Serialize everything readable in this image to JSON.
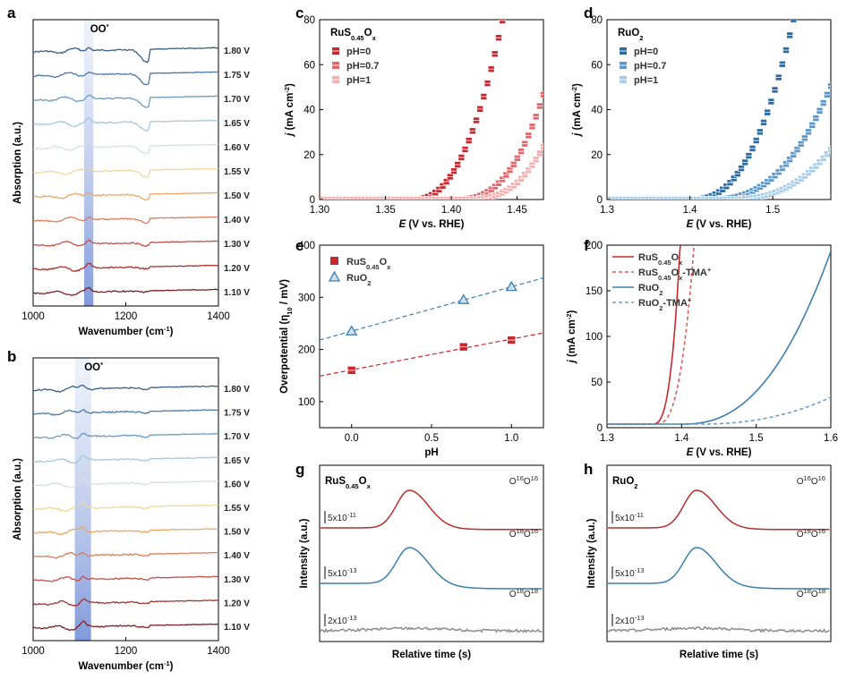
{
  "chart_data": [
    {
      "panel": "a",
      "type": "line",
      "xlabel": "Wavenumber (cm",
      "xlabel_sup": "-1",
      "xlabel_end": ")",
      "ylabel": "Absorption (a.u.)",
      "xlim": [
        1000,
        1400
      ],
      "xticks": [
        "1000",
        "1200",
        "1400"
      ],
      "annotation": "OO",
      "annotation_sup": "*",
      "highlight_band": [
        1110,
        1130
      ],
      "series": [
        {
          "name": "1.80 V",
          "color": "#3a5f86"
        },
        {
          "name": "1.75 V",
          "color": "#4d7aa3"
        },
        {
          "name": "1.70 V",
          "color": "#6f9bc0"
        },
        {
          "name": "1.65 V",
          "color": "#a7c7dc"
        },
        {
          "name": "1.60 V",
          "color": "#d8dfe3"
        },
        {
          "name": "1.55 V",
          "color": "#f1d79a"
        },
        {
          "name": "1.50 V",
          "color": "#eaa766"
        },
        {
          "name": "1.40 V",
          "color": "#d77f5e"
        },
        {
          "name": "1.30 V",
          "color": "#c2504a"
        },
        {
          "name": "1.20 V",
          "color": "#a8312f"
        },
        {
          "name": "1.10 V",
          "color": "#7d1f24"
        }
      ]
    },
    {
      "panel": "b",
      "type": "line",
      "xlabel": "Wavenumber (cm",
      "xlabel_sup": "-1",
      "xlabel_end": ")",
      "ylabel": "Absorption (a.u.)",
      "xlim": [
        1000,
        1400
      ],
      "xticks": [
        "1000",
        "1200",
        "1400"
      ],
      "annotation": "OO",
      "annotation_sup": "*",
      "highlight_band": [
        1090,
        1125
      ],
      "series": [
        {
          "name": "1.80 V",
          "color": "#3a5f86"
        },
        {
          "name": "1.75 V",
          "color": "#4d7aa3"
        },
        {
          "name": "1.70 V",
          "color": "#6f9bc0"
        },
        {
          "name": "1.65 V",
          "color": "#a7c7dc"
        },
        {
          "name": "1.60 V",
          "color": "#d8dfe3"
        },
        {
          "name": "1.55 V",
          "color": "#f1d79a"
        },
        {
          "name": "1.50 V",
          "color": "#eaa766"
        },
        {
          "name": "1.40 V",
          "color": "#d77f5e"
        },
        {
          "name": "1.30 V",
          "color": "#c2504a"
        },
        {
          "name": "1.20 V",
          "color": "#a8312f"
        },
        {
          "name": "1.10 V",
          "color": "#7d1f24"
        }
      ]
    },
    {
      "panel": "c",
      "type": "scatter",
      "title": "RuS",
      "title_sub": "0.45",
      "title_end": "O",
      "title_sub2": "x",
      "xlabel": "E (V vs. RHE)",
      "ylabel": "j (mA cm",
      "ylabel_sup": "-2",
      "ylabel_end": ")",
      "xlim": [
        1.3,
        1.47
      ],
      "ylim": [
        0,
        80
      ],
      "xticks": [
        "1.30",
        "1.35",
        "1.40",
        "1.45"
      ],
      "yticks": [
        "0",
        "20",
        "40",
        "60",
        "80"
      ],
      "series": [
        {
          "name": "pH=0",
          "color": "#c7282d",
          "onset": 1.37,
          "k": 49000,
          "n": 2.4
        },
        {
          "name": "pH=0.7",
          "color": "#e2666a",
          "onset": 1.4,
          "k": 80000,
          "n": 2.8
        },
        {
          "name": "pH=1",
          "color": "#f2b0b0",
          "onset": 1.41,
          "k": 62000,
          "n": 2.8
        }
      ]
    },
    {
      "panel": "d",
      "type": "scatter",
      "title": "RuO",
      "title_sub": "2",
      "xlabel": "E (V vs. RHE)",
      "ylabel": "j (mA cm",
      "ylabel_sup": "-2",
      "ylabel_end": ")",
      "xlim": [
        1.3,
        1.57
      ],
      "ylim": [
        0,
        80
      ],
      "xticks": [
        "1.3",
        "1.4",
        "1.5"
      ],
      "yticks": [
        "0",
        "20",
        "40",
        "60",
        "80"
      ],
      "series": [
        {
          "name": "pH=0",
          "color": "#2d6aa0",
          "onset": 1.4,
          "k": 14500,
          "n": 2.5
        },
        {
          "name": "pH=0.7",
          "color": "#5b97c8",
          "onset": 1.42,
          "k": 7000,
          "n": 2.6
        },
        {
          "name": "pH=1",
          "color": "#a9cde6",
          "onset": 1.44,
          "k": 5500,
          "n": 2.7
        }
      ]
    },
    {
      "panel": "e",
      "type": "scatter",
      "xlabel": "pH",
      "ylabel": "Overpotential (η",
      "ylabel_sub": "10",
      "ylabel_end": " / mV)",
      "xlim": [
        -0.2,
        1.2
      ],
      "ylim": [
        50,
        400
      ],
      "xticks": [
        "0.0",
        "0.5",
        "1.0"
      ],
      "yticks": [
        "100",
        "200",
        "300",
        "400"
      ],
      "series": [
        {
          "name": "RuS0.45Ox",
          "label": "RuS",
          "label_sub": "0.45",
          "label_end": "O",
          "label_sub2": "x",
          "color": "#c7282d",
          "marker": "square",
          "x": [
            0,
            0.7,
            1.0
          ],
          "y": [
            160,
            205,
            218
          ]
        },
        {
          "name": "RuO2",
          "label": "RuO",
          "label_sub": "2",
          "color": "#3d7fb0",
          "marker": "triangle",
          "x": [
            0,
            0.7,
            1.0
          ],
          "y": [
            235,
            295,
            320
          ]
        }
      ]
    },
    {
      "panel": "f",
      "type": "line",
      "xlabel": "E (V vs. RHE)",
      "ylabel": "j (mA cm",
      "ylabel_sup": "-2",
      "ylabel_end": ")",
      "xlim": [
        1.3,
        1.6
      ],
      "ylim": [
        0,
        200
      ],
      "xticks": [
        "1.3",
        "1.4",
        "1.5",
        "1.6"
      ],
      "yticks": [
        "0",
        "50",
        "100",
        "150",
        "200"
      ],
      "series": [
        {
          "name": "RuS0.45Ox",
          "label": "RuS",
          "label_sub": "0.45",
          "label_end": "O",
          "label_sub2": "x",
          "label_sup": "",
          "color": "#c7282d",
          "dash": false,
          "onset": 1.36,
          "k": 3640000,
          "n": 3.0
        },
        {
          "name": "RuS0.45Ox-TMA+",
          "label": "RuS",
          "label_sub": "0.45",
          "label_end": "O",
          "label_sub2": "x",
          "label_tail": "-TMA",
          "label_sup": "+",
          "color": "#e05a5e",
          "dash": true,
          "onset": 1.365,
          "k": 800000,
          "n": 2.8
        },
        {
          "name": "RuO2",
          "label": "RuO",
          "label_sub": "2",
          "label_sup": "",
          "color": "#3d7fb0",
          "dash": false,
          "onset": 1.4,
          "k": 9200,
          "n": 2.4
        },
        {
          "name": "RuO2-TMA+",
          "label": "RuO",
          "label_sub": "2",
          "label_tail": "-TMA",
          "label_sup": "+",
          "color": "#6aa0cc",
          "dash": true,
          "onset": 1.42,
          "k": 1550,
          "n": 2.3
        }
      ]
    },
    {
      "panel": "g",
      "type": "line",
      "title": "RuS",
      "title_sub": "0.45",
      "title_end": "O",
      "title_sub2": "x",
      "xlabel": "Relative time (s)",
      "ylabel": "Intensity (a.u.)",
      "series": [
        {
          "name": "O16O16",
          "label": "O",
          "s1": "16",
          "mid": "O",
          "s2": "16",
          "color": "#b3302e",
          "scale": "5x10",
          "scale_sup": "-11",
          "peak": true
        },
        {
          "name": "O18O16",
          "label": "O",
          "s1": "18",
          "mid": "O",
          "s2": "16",
          "color": "#3a80ad",
          "scale": "5x10",
          "scale_sup": "-13",
          "peak": true
        },
        {
          "name": "O18O18",
          "label": "O",
          "s1": "18",
          "mid": "O",
          "s2": "18",
          "color": "#8c8c8c",
          "scale": "2x10",
          "scale_sup": "-13",
          "peak": false
        }
      ]
    },
    {
      "panel": "h",
      "type": "line",
      "title": "RuO",
      "title_sub": "2",
      "xlabel": "Relative time (s)",
      "ylabel": "Intensity (a.u.)",
      "series": [
        {
          "name": "O16O16",
          "label": "O",
          "s1": "16",
          "mid": "O",
          "s2": "16",
          "color": "#b3302e",
          "scale": "5x10",
          "scale_sup": "-11",
          "peak": true
        },
        {
          "name": "O18O16",
          "label": "O",
          "s1": "18",
          "mid": "O",
          "s2": "16",
          "color": "#3a80ad",
          "scale": "5x10",
          "scale_sup": "-13",
          "peak": true
        },
        {
          "name": "O18O18",
          "label": "O",
          "s1": "18",
          "mid": "O",
          "s2": "18",
          "color": "#8c8c8c",
          "scale": "2x10",
          "scale_sup": "-13",
          "peak": false
        }
      ]
    }
  ]
}
